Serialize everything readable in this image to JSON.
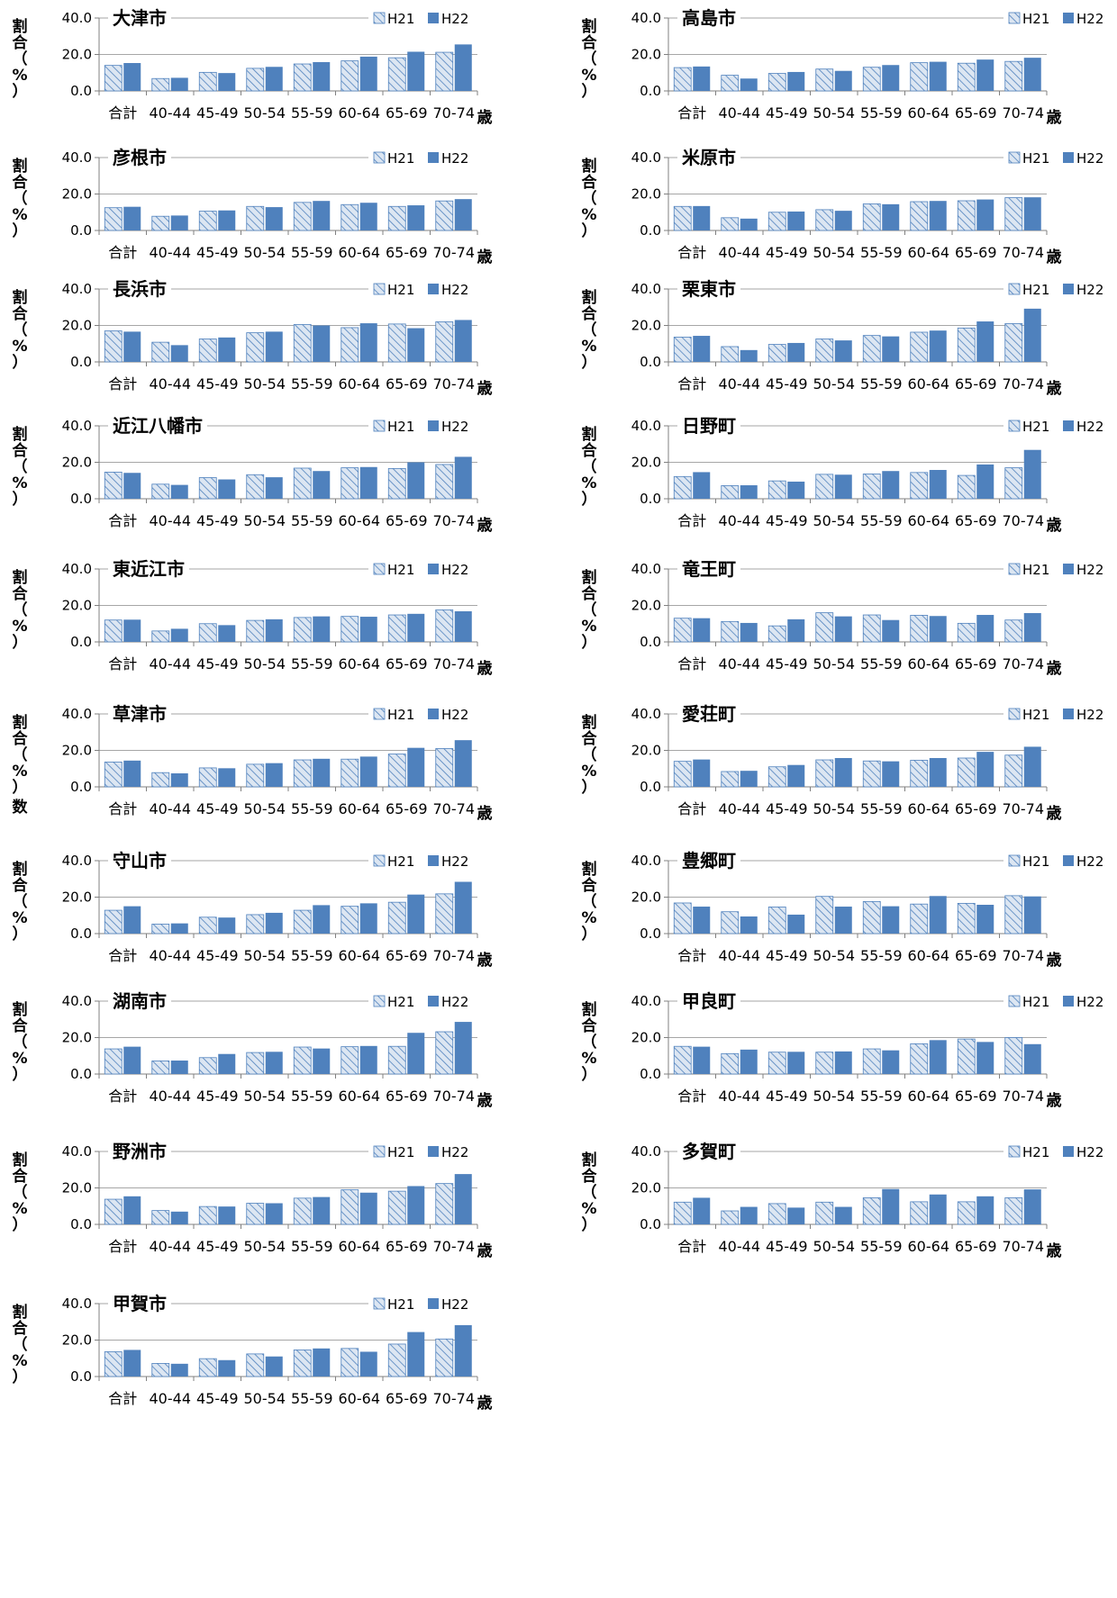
{
  "legend": {
    "h21": "H21",
    "h22": "H22"
  },
  "y_axis_label_chars": [
    "割",
    "合",
    "（",
    "%",
    "）"
  ],
  "x_unit": "歳",
  "stray_label": "数",
  "colors": {
    "h21_fill": "#dce6f2",
    "h21_hatch": "#4f81bd",
    "h22_fill": "#4f81bd",
    "axis": "#808080"
  },
  "chart_data": [
    {
      "type": "bar",
      "title": "大津市",
      "ylabel": "割合（%）",
      "ylim": [
        0,
        40
      ],
      "yticks": [
        "0.0",
        "20.0",
        "40.0"
      ],
      "categories": [
        "合計",
        "40-44",
        "45-49",
        "50-54",
        "55-59",
        "60-64",
        "65-69",
        "70-74"
      ],
      "series": [
        {
          "name": "H21",
          "values": [
            14.0,
            6.8,
            10.2,
            12.4,
            14.8,
            16.5,
            18.2,
            21.2
          ]
        },
        {
          "name": "H22",
          "values": [
            15.3,
            7.2,
            9.8,
            13.2,
            15.8,
            18.8,
            21.5,
            25.5
          ]
        }
      ]
    },
    {
      "type": "bar",
      "title": "高島市",
      "ylabel": "割合（%）",
      "ylim": [
        0,
        40
      ],
      "yticks": [
        "0.0",
        "20.0",
        "40.0"
      ],
      "categories": [
        "合計",
        "40-44",
        "45-49",
        "50-54",
        "55-59",
        "60-64",
        "65-69",
        "70-74"
      ],
      "series": [
        {
          "name": "H21",
          "values": [
            12.8,
            8.6,
            9.6,
            12.0,
            13.0,
            15.5,
            15.2,
            16.2
          ]
        },
        {
          "name": "H22",
          "values": [
            13.4,
            6.8,
            10.4,
            11.0,
            14.2,
            16.0,
            17.2,
            18.2
          ]
        }
      ]
    },
    {
      "type": "bar",
      "title": "彦根市",
      "ylabel": "割合（%）",
      "ylim": [
        0,
        40
      ],
      "yticks": [
        "0.0",
        "20.0",
        "40.0"
      ],
      "categories": [
        "合計",
        "40-44",
        "45-49",
        "50-54",
        "55-59",
        "60-64",
        "65-69",
        "70-74"
      ],
      "series": [
        {
          "name": "H21",
          "values": [
            12.5,
            7.8,
            10.6,
            13.2,
            15.4,
            14.2,
            13.2,
            16.2
          ]
        },
        {
          "name": "H22",
          "values": [
            13.0,
            8.2,
            11.0,
            12.8,
            16.2,
            15.2,
            13.8,
            17.2
          ]
        }
      ]
    },
    {
      "type": "bar",
      "title": "米原市",
      "ylabel": "割合（%）",
      "ylim": [
        0,
        40
      ],
      "yticks": [
        "0.0",
        "20.0",
        "40.0"
      ],
      "categories": [
        "合計",
        "40-44",
        "45-49",
        "50-54",
        "55-59",
        "60-64",
        "65-69",
        "70-74"
      ],
      "series": [
        {
          "name": "H21",
          "values": [
            13.2,
            7.0,
            10.0,
            11.4,
            14.6,
            15.8,
            16.3,
            18.0
          ]
        },
        {
          "name": "H22",
          "values": [
            13.4,
            6.5,
            10.4,
            10.8,
            14.4,
            16.2,
            17.0,
            18.2
          ]
        }
      ]
    },
    {
      "type": "bar",
      "title": "長浜市",
      "ylabel": "割合（%）",
      "ylim": [
        0,
        40
      ],
      "yticks": [
        "0.0",
        "20.0",
        "40.0"
      ],
      "categories": [
        "合計",
        "40-44",
        "45-49",
        "50-54",
        "55-59",
        "60-64",
        "65-69",
        "70-74"
      ],
      "series": [
        {
          "name": "H21",
          "values": [
            17.0,
            10.8,
            12.6,
            16.0,
            20.5,
            18.8,
            20.8,
            22.0
          ]
        },
        {
          "name": "H22",
          "values": [
            16.6,
            9.2,
            13.4,
            16.6,
            20.0,
            21.2,
            18.5,
            23.0
          ]
        }
      ]
    },
    {
      "type": "bar",
      "title": "栗東市",
      "ylabel": "割合（%）",
      "ylim": [
        0,
        40
      ],
      "yticks": [
        "0.0",
        "20.0",
        "40.0"
      ],
      "categories": [
        "合計",
        "40-44",
        "45-49",
        "50-54",
        "55-59",
        "60-64",
        "65-69",
        "70-74"
      ],
      "series": [
        {
          "name": "H21",
          "values": [
            13.6,
            8.4,
            9.6,
            12.6,
            14.5,
            16.3,
            18.6,
            21.0
          ]
        },
        {
          "name": "H22",
          "values": [
            14.3,
            6.5,
            10.4,
            11.8,
            14.0,
            17.2,
            22.2,
            29.2
          ]
        }
      ]
    },
    {
      "type": "bar",
      "title": "近江八幡市",
      "ylabel": "割合（%）",
      "ylim": [
        0,
        40
      ],
      "yticks": [
        "0.0",
        "20.0",
        "40.0"
      ],
      "categories": [
        "合計",
        "40-44",
        "45-49",
        "50-54",
        "55-59",
        "60-64",
        "65-69",
        "70-74"
      ],
      "series": [
        {
          "name": "H21",
          "values": [
            14.6,
            8.0,
            11.6,
            13.2,
            16.8,
            17.0,
            16.6,
            18.8
          ]
        },
        {
          "name": "H22",
          "values": [
            14.2,
            7.6,
            10.6,
            11.8,
            15.2,
            17.4,
            20.0,
            23.0
          ]
        }
      ]
    },
    {
      "type": "bar",
      "title": "日野町",
      "ylabel": "割合（%）",
      "ylim": [
        0,
        40
      ],
      "yticks": [
        "0.0",
        "20.0",
        "40.0"
      ],
      "categories": [
        "合計",
        "40-44",
        "45-49",
        "50-54",
        "55-59",
        "60-64",
        "65-69",
        "70-74"
      ],
      "series": [
        {
          "name": "H21",
          "values": [
            12.2,
            7.2,
            9.8,
            13.4,
            13.6,
            14.4,
            12.8,
            17.0
          ]
        },
        {
          "name": "H22",
          "values": [
            14.6,
            7.4,
            9.4,
            13.2,
            15.2,
            15.8,
            18.8,
            26.8
          ]
        }
      ]
    },
    {
      "type": "bar",
      "title": "東近江市",
      "ylabel": "割合（%）",
      "ylim": [
        0,
        40
      ],
      "yticks": [
        "0.0",
        "20.0",
        "40.0"
      ],
      "categories": [
        "合計",
        "40-44",
        "45-49",
        "50-54",
        "55-59",
        "60-64",
        "65-69",
        "70-74"
      ],
      "series": [
        {
          "name": "H21",
          "values": [
            12.0,
            6.0,
            10.0,
            11.8,
            13.4,
            14.0,
            14.8,
            17.6
          ]
        },
        {
          "name": "H22",
          "values": [
            12.2,
            7.2,
            9.2,
            12.4,
            14.0,
            13.8,
            15.4,
            16.8
          ]
        }
      ]
    },
    {
      "type": "bar",
      "title": "竜王町",
      "ylabel": "割合（%）",
      "ylim": [
        0,
        40
      ],
      "yticks": [
        "0.0",
        "20.0",
        "40.0"
      ],
      "categories": [
        "合計",
        "40-44",
        "45-49",
        "50-54",
        "55-59",
        "60-64",
        "65-69",
        "70-74"
      ],
      "series": [
        {
          "name": "H21",
          "values": [
            13.0,
            11.2,
            8.8,
            16.0,
            14.8,
            14.6,
            10.2,
            12.0
          ]
        },
        {
          "name": "H22",
          "values": [
            13.0,
            10.4,
            12.4,
            14.0,
            12.0,
            14.2,
            14.8,
            15.8
          ]
        }
      ]
    },
    {
      "type": "bar",
      "title": "草津市",
      "ylabel": "割合（%）",
      "ylim": [
        0,
        40
      ],
      "yticks": [
        "0.0",
        "20.0",
        "40.0"
      ],
      "categories": [
        "合計",
        "40-44",
        "45-49",
        "50-54",
        "55-59",
        "60-64",
        "65-69",
        "70-74"
      ],
      "series": [
        {
          "name": "H21",
          "values": [
            13.6,
            7.8,
            10.4,
            12.4,
            14.8,
            15.2,
            18.0,
            21.0
          ]
        },
        {
          "name": "H22",
          "values": [
            14.4,
            7.4,
            10.2,
            13.0,
            15.4,
            16.6,
            21.4,
            25.6
          ]
        }
      ]
    },
    {
      "type": "bar",
      "title": "愛荘町",
      "ylabel": "割合（%）",
      "ylim": [
        0,
        40
      ],
      "yticks": [
        "0.0",
        "20.0",
        "40.0"
      ],
      "categories": [
        "合計",
        "40-44",
        "45-49",
        "50-54",
        "55-59",
        "60-64",
        "65-69",
        "70-74"
      ],
      "series": [
        {
          "name": "H21",
          "values": [
            14.0,
            8.4,
            11.0,
            14.8,
            14.2,
            14.6,
            15.8,
            17.4
          ]
        },
        {
          "name": "H22",
          "values": [
            15.0,
            8.8,
            12.0,
            15.8,
            14.0,
            15.8,
            19.2,
            22.0
          ]
        }
      ]
    },
    {
      "type": "bar",
      "title": "守山市",
      "ylabel": "割合（%）",
      "ylim": [
        0,
        40
      ],
      "yticks": [
        "0.0",
        "20.0",
        "40.0"
      ],
      "categories": [
        "合計",
        "40-44",
        "45-49",
        "50-54",
        "55-59",
        "60-64",
        "65-69",
        "70-74"
      ],
      "series": [
        {
          "name": "H21",
          "values": [
            12.8,
            5.2,
            9.0,
            10.4,
            12.8,
            15.0,
            17.2,
            21.8
          ]
        },
        {
          "name": "H22",
          "values": [
            15.0,
            5.6,
            8.8,
            11.4,
            15.6,
            16.6,
            21.4,
            28.4
          ]
        }
      ]
    },
    {
      "type": "bar",
      "title": "豊郷町",
      "ylabel": "割合（%）",
      "ylim": [
        0,
        40
      ],
      "yticks": [
        "0.0",
        "20.0",
        "40.0"
      ],
      "categories": [
        "合計",
        "40-44",
        "45-49",
        "50-54",
        "55-59",
        "60-64",
        "65-69",
        "70-74"
      ],
      "series": [
        {
          "name": "H21",
          "values": [
            16.8,
            12.0,
            14.6,
            20.4,
            17.6,
            16.2,
            16.6,
            20.8
          ]
        },
        {
          "name": "H22",
          "values": [
            14.8,
            9.4,
            10.4,
            14.8,
            15.0,
            20.6,
            15.8,
            20.4
          ]
        }
      ]
    },
    {
      "type": "bar",
      "title": "湖南市",
      "ylabel": "割合（%）",
      "ylim": [
        0,
        40
      ],
      "yticks": [
        "0.0",
        "20.0",
        "40.0"
      ],
      "categories": [
        "合計",
        "40-44",
        "45-49",
        "50-54",
        "55-59",
        "60-64",
        "65-69",
        "70-74"
      ],
      "series": [
        {
          "name": "H21",
          "values": [
            13.8,
            7.2,
            9.0,
            11.8,
            14.8,
            15.0,
            15.2,
            23.2
          ]
        },
        {
          "name": "H22",
          "values": [
            15.0,
            7.4,
            11.0,
            12.2,
            14.0,
            15.4,
            22.6,
            28.6
          ]
        }
      ]
    },
    {
      "type": "bar",
      "title": "甲良町",
      "ylabel": "割合（%）",
      "ylim": [
        0,
        40
      ],
      "yticks": [
        "0.0",
        "20.0",
        "40.0"
      ],
      "categories": [
        "合計",
        "40-44",
        "45-49",
        "50-54",
        "55-59",
        "60-64",
        "65-69",
        "70-74"
      ],
      "series": [
        {
          "name": "H21",
          "values": [
            15.2,
            11.2,
            12.0,
            12.0,
            13.8,
            16.6,
            19.2,
            20.0
          ]
        },
        {
          "name": "H22",
          "values": [
            15.0,
            13.4,
            12.2,
            12.4,
            13.0,
            18.6,
            17.6,
            16.4
          ]
        }
      ]
    },
    {
      "type": "bar",
      "title": "野洲市",
      "ylabel": "割合（%）",
      "ylim": [
        0,
        40
      ],
      "yticks": [
        "0.0",
        "20.0",
        "40.0"
      ],
      "categories": [
        "合計",
        "40-44",
        "45-49",
        "50-54",
        "55-59",
        "60-64",
        "65-69",
        "70-74"
      ],
      "series": [
        {
          "name": "H21",
          "values": [
            13.8,
            7.6,
            9.8,
            11.6,
            14.4,
            19.0,
            18.2,
            22.4
          ]
        },
        {
          "name": "H22",
          "values": [
            15.4,
            7.0,
            9.8,
            11.6,
            15.0,
            17.4,
            21.0,
            27.6
          ]
        }
      ]
    },
    {
      "type": "bar",
      "title": "多賀町",
      "ylabel": "割合（%）",
      "ylim": [
        0,
        40
      ],
      "yticks": [
        "0.0",
        "20.0",
        "40.0"
      ],
      "categories": [
        "合計",
        "40-44",
        "45-49",
        "50-54",
        "55-59",
        "60-64",
        "65-69",
        "70-74"
      ],
      "series": [
        {
          "name": "H21",
          "values": [
            12.2,
            7.4,
            11.4,
            12.2,
            14.6,
            12.4,
            12.4,
            14.6
          ]
        },
        {
          "name": "H22",
          "values": [
            14.6,
            9.6,
            9.2,
            9.6,
            19.4,
            16.4,
            15.4,
            19.2
          ]
        }
      ]
    },
    {
      "type": "bar",
      "title": "甲賀市",
      "ylabel": "割合（%）",
      "ylim": [
        0,
        40
      ],
      "yticks": [
        "0.0",
        "20.0",
        "40.0"
      ],
      "categories": [
        "合計",
        "40-44",
        "45-49",
        "50-54",
        "55-59",
        "60-64",
        "65-69",
        "70-74"
      ],
      "series": [
        {
          "name": "H21",
          "values": [
            13.6,
            7.2,
            9.8,
            12.4,
            14.6,
            15.4,
            17.8,
            20.6
          ]
        },
        {
          "name": "H22",
          "values": [
            14.6,
            7.0,
            9.0,
            11.0,
            15.4,
            13.6,
            24.4,
            28.2
          ]
        }
      ]
    }
  ]
}
